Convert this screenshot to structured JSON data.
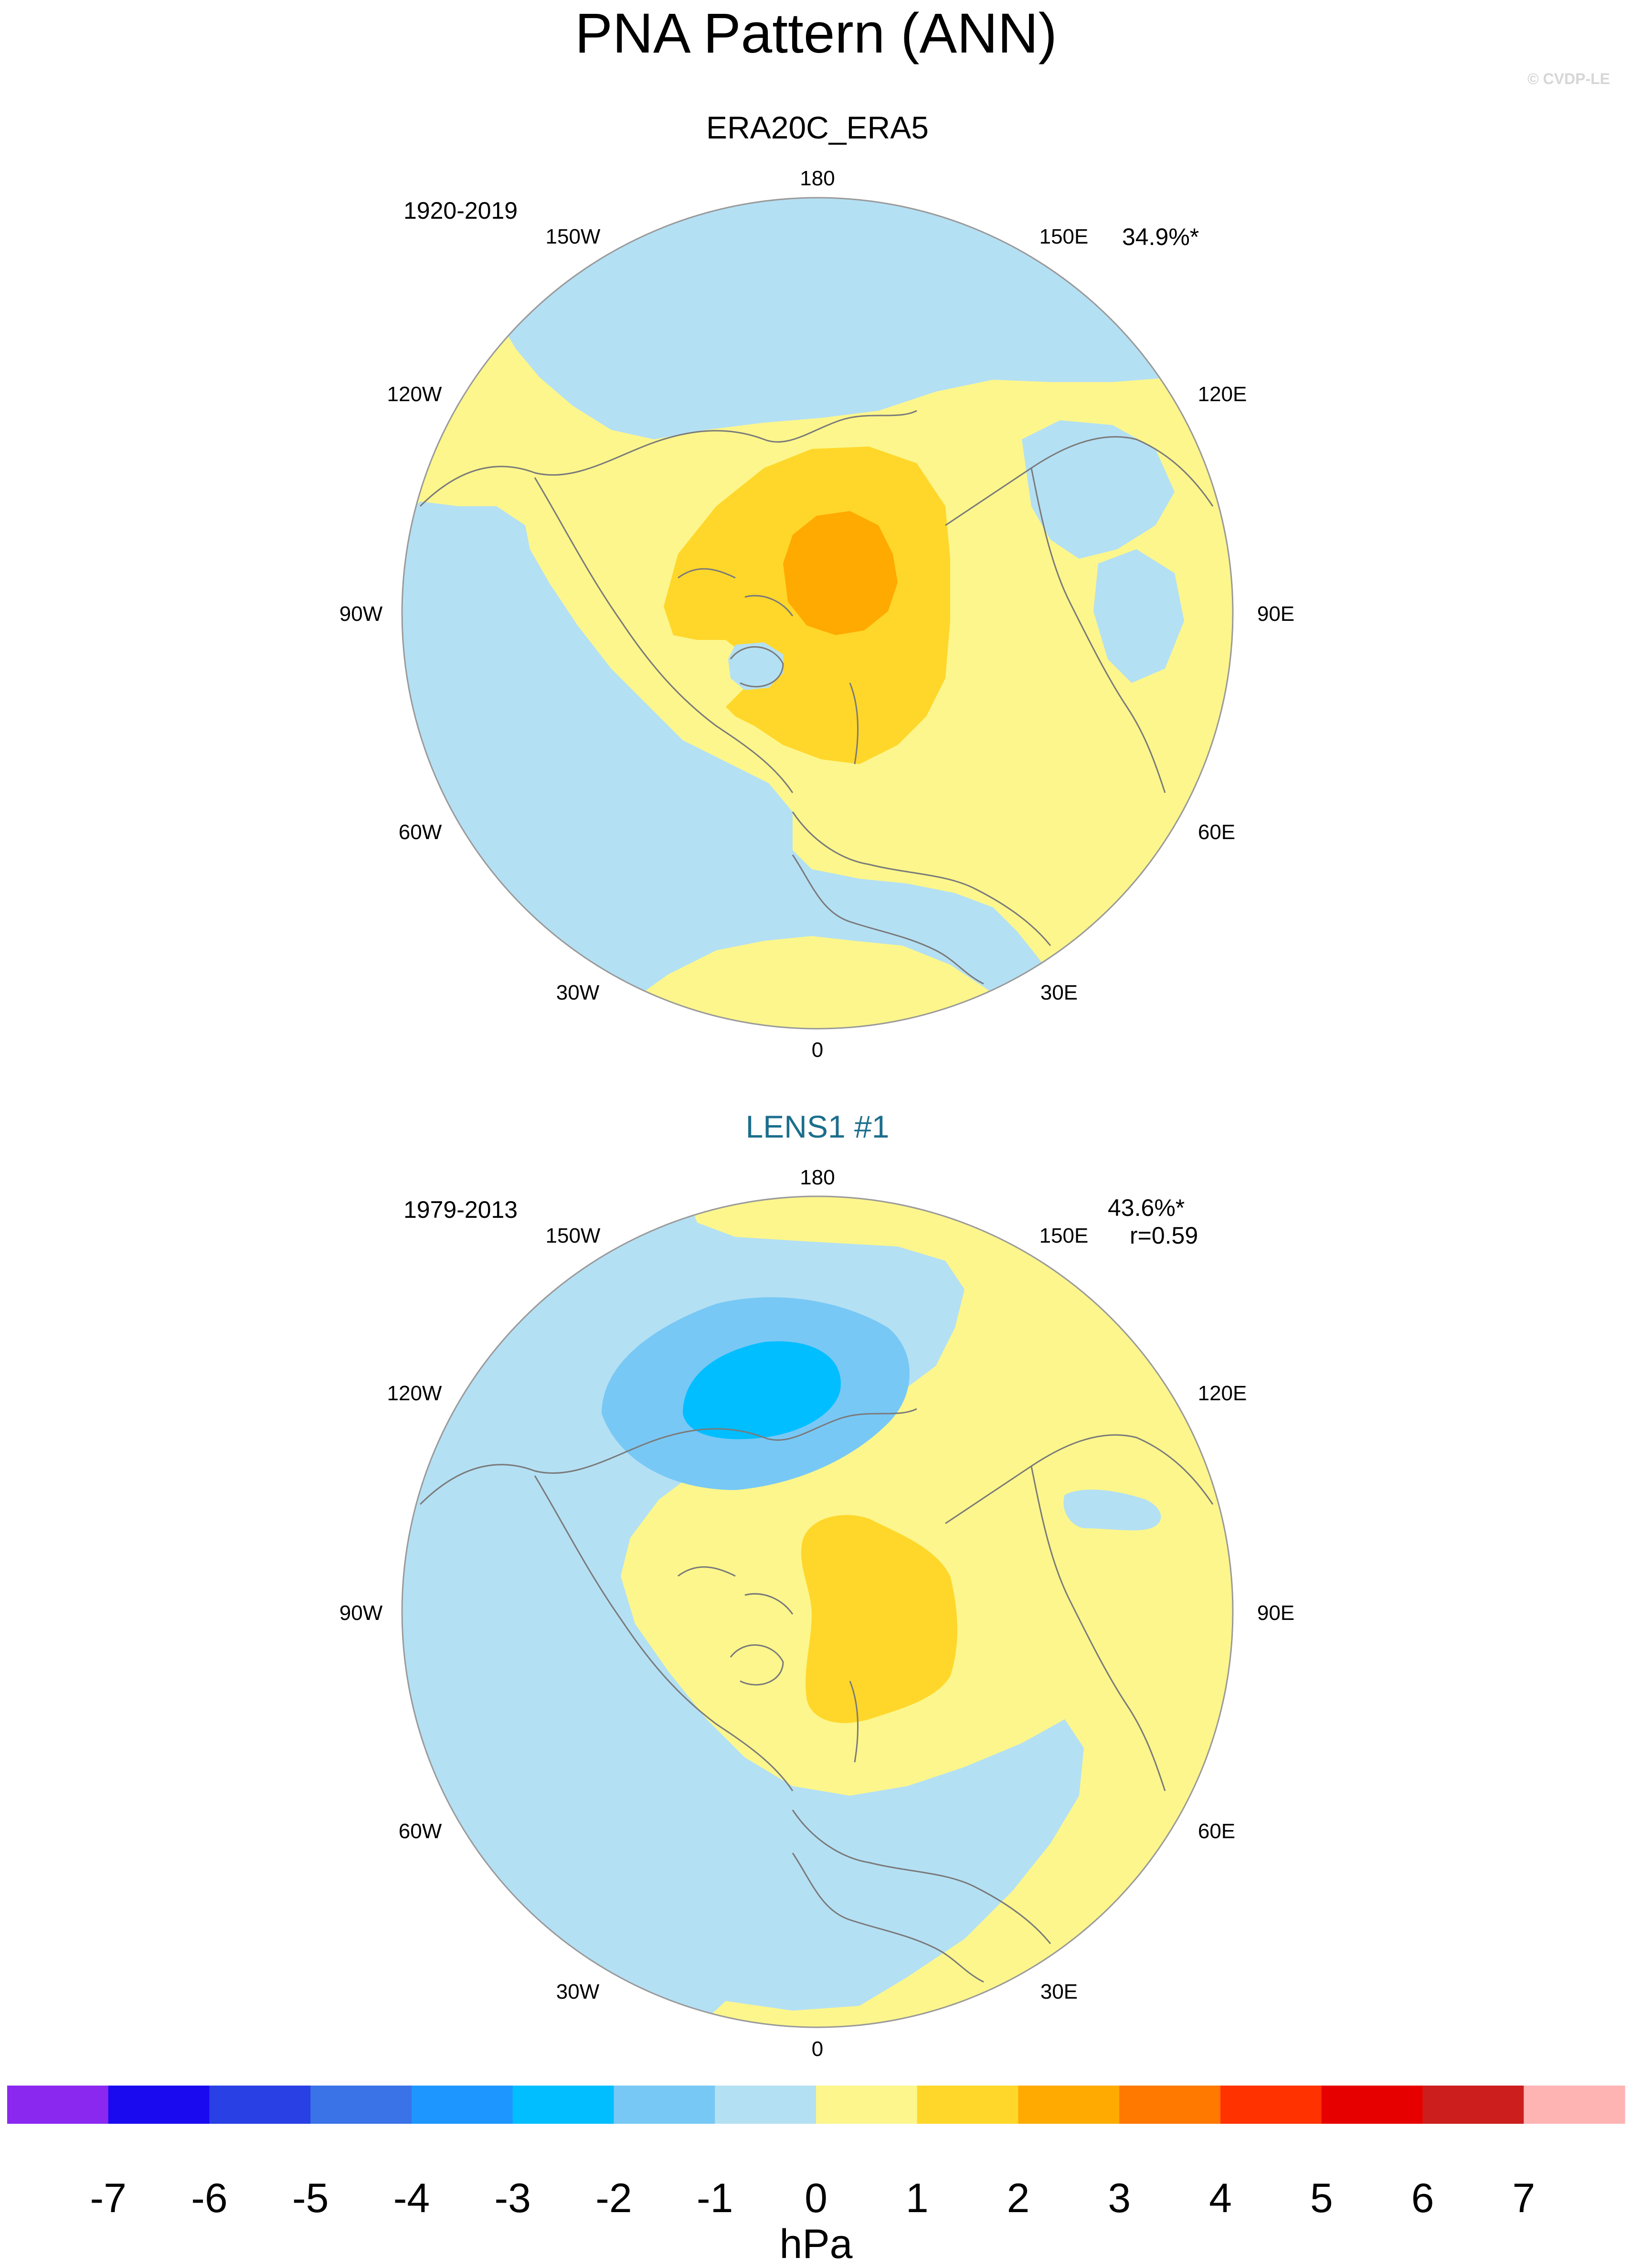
{
  "title": "PNA Pattern (ANN)",
  "credit": "© CVDP-LE",
  "colorbar": {
    "unit": "hPa",
    "ticks": [
      "-7",
      "-6",
      "-5",
      "-4",
      "-3",
      "-2",
      "-1",
      "0",
      "1",
      "2",
      "3",
      "4",
      "5",
      "6",
      "7"
    ],
    "colors": [
      "#8B28F0",
      "#1A0AF0",
      "#2840E4",
      "#3A72E8",
      "#1E96FF",
      "#00BEFF",
      "#78C8F5",
      "#B4E0F4",
      "#FCF68C",
      "#FFD72A",
      "#FFAA00",
      "#FF7800",
      "#FF3200",
      "#E60000",
      "#CD1E1E",
      "#FFB4B4"
    ]
  },
  "chart_data": [
    {
      "type": "heatmap",
      "projection": "north polar stereographic",
      "title": "ERA20C_ERA5",
      "period": "1920-2019",
      "variance": "34.9%*",
      "correlation": "",
      "title_color": "#000000",
      "longitude_labels": [
        "180",
        "150E",
        "120E",
        "90E",
        "60E",
        "30E",
        "0",
        "30W",
        "60W",
        "90W",
        "120W",
        "150W"
      ],
      "summary_field": {
        "arctic_center_max_hPa": 2.5,
        "pacific_min_hPa": -0.6,
        "atlantic_min_hPa": -0.8
      }
    },
    {
      "type": "heatmap",
      "projection": "north polar stereographic",
      "title": "LENS1 #1",
      "period": "1979-2013",
      "variance": "43.6%*",
      "correlation": "r=0.59",
      "title_color": "#1C6E8C",
      "longitude_labels": [
        "180",
        "150E",
        "120E",
        "90E",
        "60E",
        "30E",
        "0",
        "30W",
        "60W",
        "90W",
        "120W",
        "150W"
      ],
      "summary_field": {
        "pacific_min_hPa": -2.6,
        "arctic_center_max_hPa": 1.6,
        "atlantic_min_hPa": -0.7
      }
    }
  ]
}
